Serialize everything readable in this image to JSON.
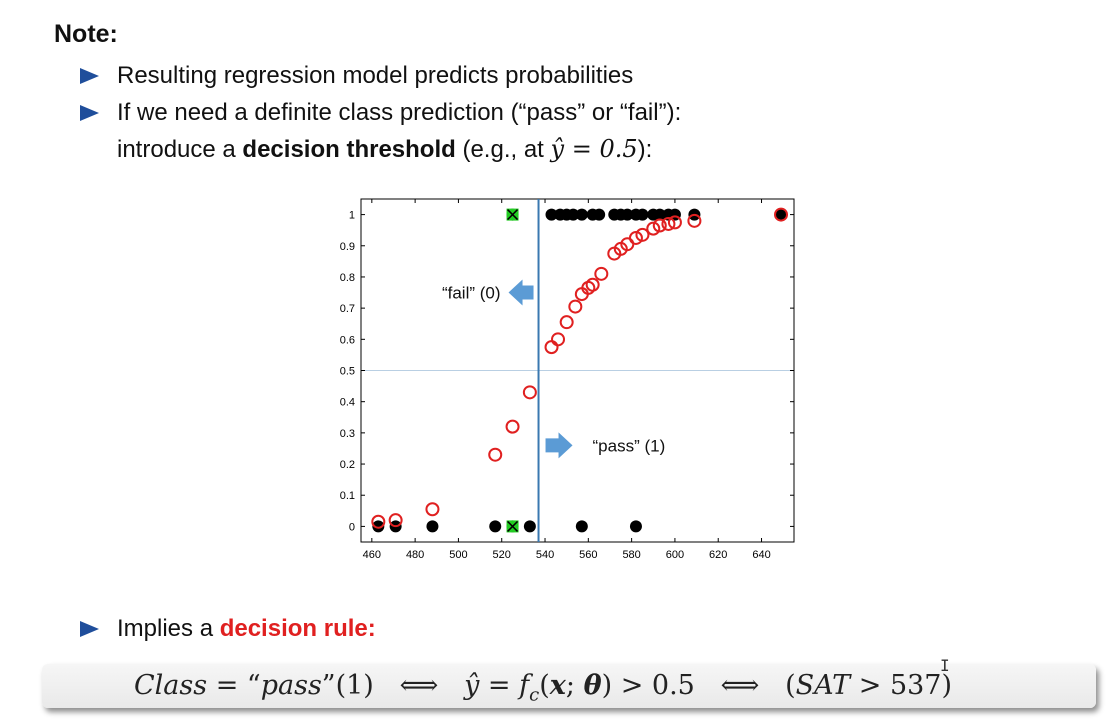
{
  "slide": {
    "note_title": "Note:",
    "bullet1": "Resulting regression model predicts probabilities",
    "bullet2_line1": "If we need a definite class prediction (“pass” or “fail”):",
    "bullet2_line2_pre": "introduce a ",
    "bullet2_line2_bold": "decision threshold",
    "bullet2_line2_post": " (e.g., at ",
    "bullet2_math": "ŷ = 0.5",
    "bullet2_end": "):",
    "bullet3_pre": "Implies a ",
    "bullet3_bold": "decision rule:",
    "rule": {
      "class_word": "Class",
      "eq1": " = “",
      "pass_word": "pass",
      "eq1b": "”(1)",
      "iff1": "⟺",
      "yhat": "ŷ",
      "eq2": " = ",
      "f": "f",
      "sub_c": "c",
      "lp": "(",
      "x_vec": "x",
      "semi": "; ",
      "theta": "θ",
      "rp": ") > 0.5",
      "iff2": "⟺",
      "sat_open": "(",
      "sat": "SAT",
      "sat_rest": " > 537)"
    },
    "cursor_glyph": "I"
  },
  "chart_data": {
    "type": "scatter",
    "xlim": [
      455,
      655
    ],
    "ylim": [
      -0.05,
      1.05
    ],
    "xticks": [
      460,
      480,
      500,
      520,
      540,
      560,
      580,
      600,
      620,
      640
    ],
    "yticks": [
      0,
      0.1,
      0.2,
      0.3,
      0.4,
      0.5,
      0.6,
      0.7,
      0.8,
      0.9,
      1
    ],
    "grid": false,
    "threshold_y": 0.5,
    "threshold_x": 537,
    "colors": {
      "observed": "#000000",
      "predicted": "#e02020",
      "misclassified": "#22cc22",
      "threshold": "#3a78b0",
      "arrow": "#5b9bd5"
    },
    "observed": {
      "x": [
        463,
        471,
        488,
        517,
        525,
        533,
        557,
        582,
        525,
        543,
        547,
        550,
        553,
        557,
        562,
        565,
        572,
        575,
        578,
        582,
        585,
        590,
        593,
        597,
        600,
        609,
        649
      ],
      "y": [
        0,
        0,
        0,
        0,
        0,
        0,
        0,
        0,
        1,
        1,
        1,
        1,
        1,
        1,
        1,
        1,
        1,
        1,
        1,
        1,
        1,
        1,
        1,
        1,
        1,
        1,
        1
      ]
    },
    "predicted": {
      "x": [
        463,
        471,
        488,
        517,
        525,
        533,
        543,
        546,
        550,
        554,
        557,
        560,
        562,
        566,
        572,
        575,
        578,
        582,
        585,
        590,
        593,
        597,
        600,
        609,
        649
      ],
      "y": [
        0.015,
        0.02,
        0.055,
        0.23,
        0.32,
        0.43,
        0.575,
        0.6,
        0.655,
        0.705,
        0.745,
        0.765,
        0.775,
        0.81,
        0.875,
        0.89,
        0.905,
        0.925,
        0.935,
        0.955,
        0.965,
        0.97,
        0.975,
        0.98,
        1.0
      ]
    },
    "misclassified": {
      "x": [
        525,
        525
      ],
      "y": [
        0,
        1
      ]
    },
    "annotations": [
      {
        "text": "“fail” (0)",
        "arrow": "left"
      },
      {
        "text": "“pass” (1)",
        "arrow": "right"
      }
    ]
  }
}
